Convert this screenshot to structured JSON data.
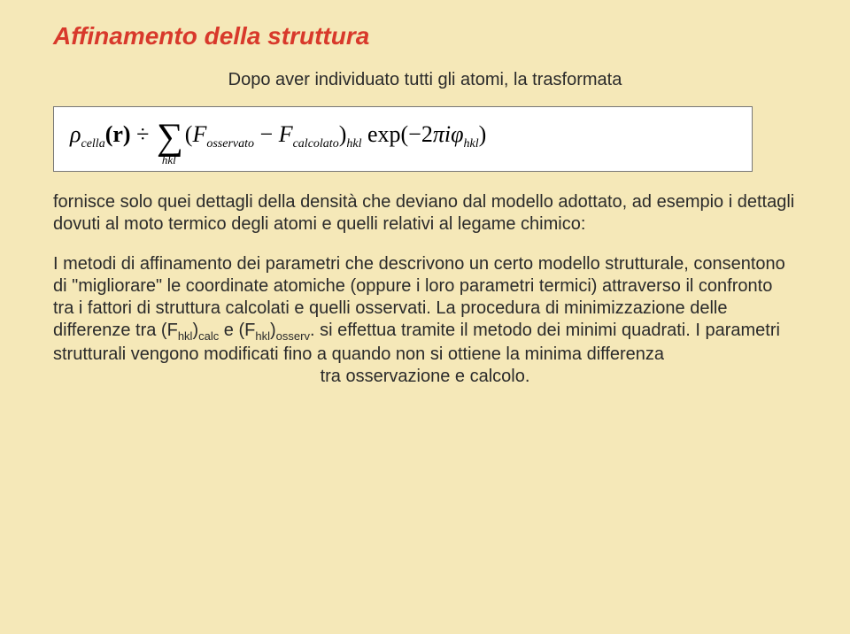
{
  "title": "Affinamento della struttura",
  "intro": "Dopo aver individuato tutti gli atomi, la trasformata",
  "formula": {
    "lhs_rho": "ρ",
    "lhs_sub": "cella",
    "lhs_arg": "(r) ÷ ",
    "sigma_sub": "hkl",
    "paren_open": "(",
    "F1": "F",
    "F1_sub": "osservato",
    "minus": " − ",
    "F2": "F",
    "F2_sub": "calcolato",
    "paren_close": ")",
    "outer_sub": "hkl",
    "exp": " exp(−2πi",
    "phi": "φ",
    "phi_sub": "hkl",
    "close": ")"
  },
  "para2": "fornisce solo quei dettagli della densità che deviano dal modello adottato, ad esempio i dettagli dovuti al moto termico degli atomi e quelli relativi al legame chimico:",
  "para3_a": "I metodi di affinamento dei parametri che descrivono un certo modello strutturale, consentono di \"migliorare\" le coordinate atomiche (oppure i loro parametri termici) attraverso il confronto tra i fattori di struttura calcolati e quelli osservati. La procedura di minimizzazione delle differenze tra (F",
  "para3_sub1": "hkl",
  "para3_b": ")",
  "para3_sub2": "calc",
  "para3_c": " e (F",
  "para3_sub3": "hkl",
  "para3_d": ")",
  "para3_sub4": "osserv",
  "para3_e": ". si effettua tramite il metodo dei minimi quadrati. I parametri strutturali vengono modificati fino a quando non si ottiene la minima differenza",
  "para3_tail": "tra osservazione e calcolo.",
  "colors": {
    "background": "#f5e8b8",
    "title": "#d8392b",
    "body_text": "#2a2a2a",
    "formula_bg": "#ffffff",
    "formula_border": "#777777"
  },
  "fonts": {
    "body": "Comic Sans MS",
    "formula": "Georgia / Times"
  }
}
